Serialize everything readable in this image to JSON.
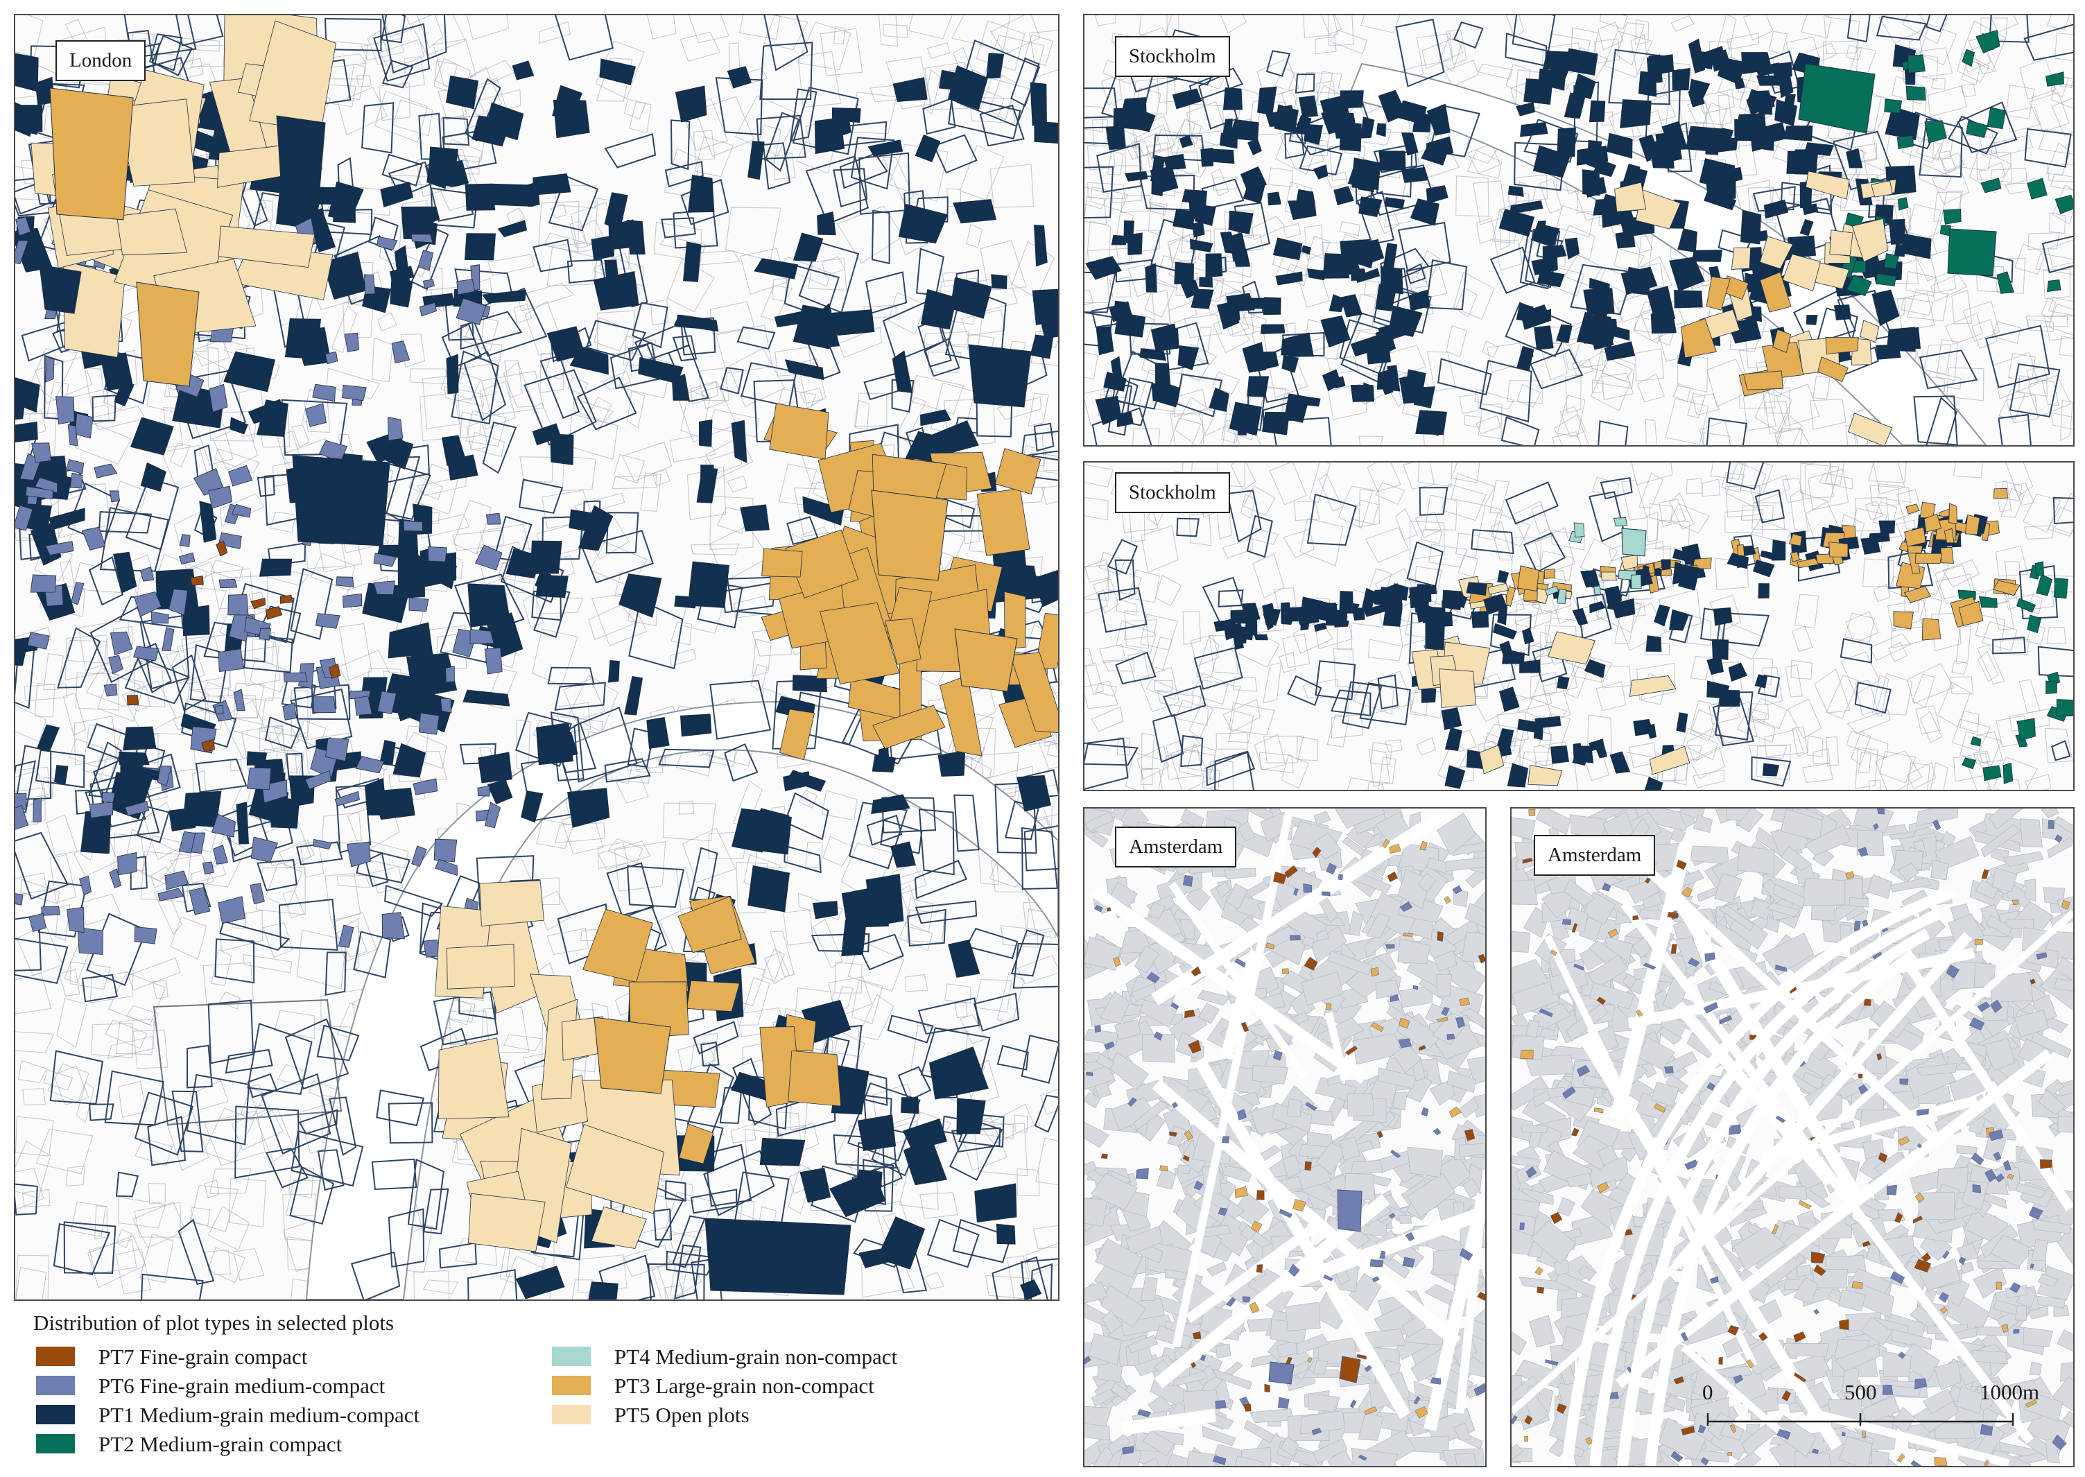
{
  "colors": {
    "PT7": "#9a4a0b",
    "PT6": "#6e7fb0",
    "PT1": "#12304f",
    "PT2": "#07705a",
    "PT4": "#a6d8cf",
    "PT3": "#e4ae55",
    "PT5": "#f6dfb3",
    "outline": "#2d4566",
    "river": "#ffffff",
    "block": "#d7dadf"
  },
  "panels": {
    "london": {
      "label": "London"
    },
    "stockholm_top": {
      "label": "Stockholm"
    },
    "stockholm_mid": {
      "label": "Stockholm"
    },
    "amsterdam_left": {
      "label": "Amsterdam"
    },
    "amsterdam_right": {
      "label": "Amsterdam"
    }
  },
  "legend": {
    "title": "Distribution of plot types  in selected plots",
    "items": [
      {
        "code": "PT7",
        "label": "PT7 Fine-grain compact"
      },
      {
        "code": "PT6",
        "label": "PT6 Fine-grain medium-compact"
      },
      {
        "code": "PT1",
        "label": "PT1 Medium-grain medium-compact"
      },
      {
        "code": "PT2",
        "label": "PT2 Medium-grain compact"
      },
      {
        "code": "PT4",
        "label": "PT4 Medium-grain non-compact"
      },
      {
        "code": "PT3",
        "label": "PT3 Large-grain non-compact"
      },
      {
        "code": "PT5",
        "label": "PT5 Open plots"
      }
    ]
  },
  "scale_bar": {
    "labels": [
      "0",
      "500",
      "1000m"
    ]
  }
}
